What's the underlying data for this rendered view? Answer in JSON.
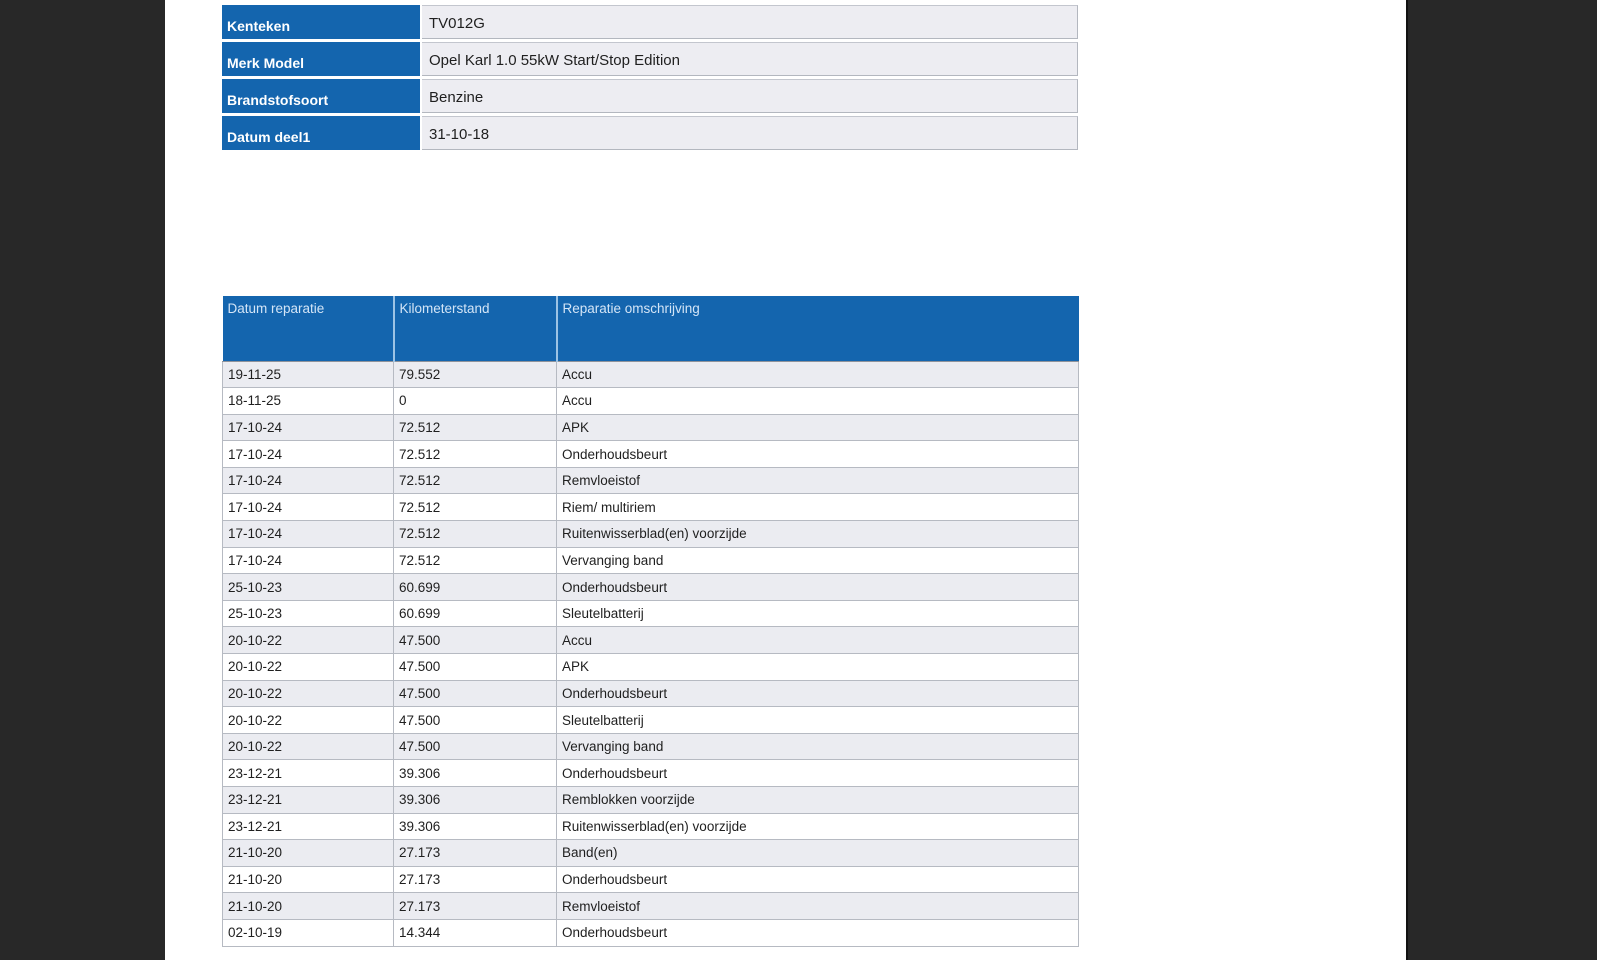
{
  "colors": {
    "header_blue": "#1465ae",
    "header_text_light": "#d3e5f7",
    "label_text": "#ffffff",
    "body_text": "#1f1f1f",
    "alt_row_bg": "#ebecf1",
    "value_cell_bg": "#ededf2",
    "viewer_margin_dark": "#282828",
    "page_white": "#ffffff"
  },
  "vehicle_info": {
    "rows": [
      {
        "label": "Kenteken",
        "value": "TV012G"
      },
      {
        "label": "Merk Model",
        "value": "Opel Karl 1.0 55kW Start/Stop Edition"
      },
      {
        "label": "Brandstofsoort",
        "value": "Benzine"
      },
      {
        "label": "Datum deel1",
        "value": "31-10-18"
      }
    ]
  },
  "repair_history": {
    "columns": [
      "Datum reparatie",
      "Kilometerstand",
      "Reparatie omschrijving"
    ],
    "rows": [
      [
        "19-11-25",
        "79.552",
        "Accu"
      ],
      [
        "18-11-25",
        "0",
        "Accu"
      ],
      [
        "17-10-24",
        "72.512",
        "APK"
      ],
      [
        "17-10-24",
        "72.512",
        "Onderhoudsbeurt"
      ],
      [
        "17-10-24",
        "72.512",
        "Remvloeistof"
      ],
      [
        "17-10-24",
        "72.512",
        "Riem/ multiriem"
      ],
      [
        "17-10-24",
        "72.512",
        "Ruitenwisserblad(en) voorzijde"
      ],
      [
        "17-10-24",
        "72.512",
        "Vervanging band"
      ],
      [
        "25-10-23",
        "60.699",
        "Onderhoudsbeurt"
      ],
      [
        "25-10-23",
        "60.699",
        "Sleutelbatterij"
      ],
      [
        "20-10-22",
        "47.500",
        "Accu"
      ],
      [
        "20-10-22",
        "47.500",
        "APK"
      ],
      [
        "20-10-22",
        "47.500",
        "Onderhoudsbeurt"
      ],
      [
        "20-10-22",
        "47.500",
        "Sleutelbatterij"
      ],
      [
        "20-10-22",
        "47.500",
        "Vervanging band"
      ],
      [
        "23-12-21",
        "39.306",
        "Onderhoudsbeurt"
      ],
      [
        "23-12-21",
        "39.306",
        "Remblokken voorzijde"
      ],
      [
        "23-12-21",
        "39.306",
        "Ruitenwisserblad(en) voorzijde"
      ],
      [
        "21-10-20",
        "27.173",
        "Band(en)"
      ],
      [
        "21-10-20",
        "27.173",
        "Onderhoudsbeurt"
      ],
      [
        "21-10-20",
        "27.173",
        "Remvloeistof"
      ],
      [
        "02-10-19",
        "14.344",
        "Onderhoudsbeurt"
      ]
    ]
  }
}
